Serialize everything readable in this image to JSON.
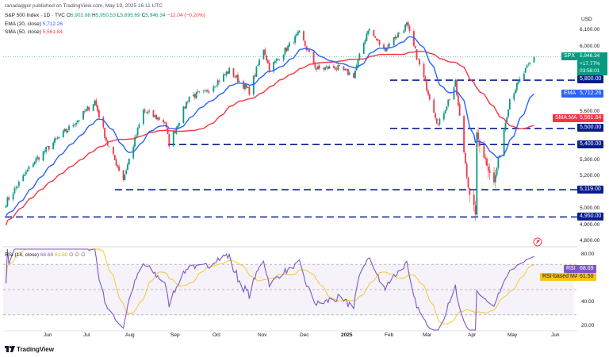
{
  "published": "ranadagger published on TradingView.com, May 19, 2025 16:11 UTC",
  "header": {
    "title": "S&P 500 Index · 1D · TVC",
    "ohlc": [
      {
        "k": "O",
        "v": "5,902.88"
      },
      {
        "k": "H",
        "v": "5,950.53"
      },
      {
        "k": "L",
        "v": "5,895.69"
      },
      {
        "k": "C",
        "v": "5,946.34"
      }
    ],
    "change": "−12.04 (−0.20%)",
    "ema_label": "EMA (20, close)",
    "ema_value": "5,712.26",
    "sma_label": "SMA (50, close)",
    "sma_value": "5,561.84"
  },
  "currency": "USD",
  "price_axis": [
    "6,100.00",
    "6,000.00",
    "5,600.00",
    "5,300.00",
    "5,200.00",
    "5,100.00",
    "5,000.00",
    "4,900.00",
    "4,800.00"
  ],
  "levels": [
    "5,800.00",
    "5,500.00",
    "5,400.00",
    "5,119.00",
    "4,950.00"
  ],
  "tags": {
    "spx": "SPX",
    "spx_value": "5,946.34",
    "spx_change": "+17.77%",
    "spx_time": "03:58:01",
    "ema": "EMA",
    "ema_value": "5,712.26",
    "sma": "SMA:MA",
    "sma_value": "5,561.84"
  },
  "rsi": {
    "label": "RSI (14, close)",
    "value": "68.69",
    "ma_value": "61.50",
    "extra": "∅ ∅ ∅",
    "axis": [
      "80.00",
      "40.00",
      "20.00"
    ],
    "tag_rsi": "RSI",
    "tag_rsi_value": "68.69",
    "tag_ma": "RSI-based MA",
    "tag_ma_value": "61.50"
  },
  "time_axis": [
    "Jun",
    "Jul",
    "Aug",
    "Sep",
    "Oct",
    "Nov",
    "Dec",
    "2025",
    "Feb",
    "Mar",
    "Apr",
    "May",
    "Jun"
  ],
  "logo": "TradingView",
  "colors": {
    "up": "#089981",
    "down": "#f23645",
    "ema": "#2962ff",
    "sma": "#f23645",
    "rsi": "#7e57c2",
    "rsi_ma": "#f5c518",
    "level": "#0a1d8f"
  },
  "chart_data": {
    "type": "candlestick",
    "title": "S&P 500 Index · 1D · TVC",
    "y_unit": "USD",
    "y_range": [
      4780,
      6170
    ],
    "x_range": [
      "2024-05-13",
      "2025-06-06"
    ],
    "horizontal_levels": [
      5800,
      5500,
      5400,
      5119,
      4950
    ],
    "last_price": 5946.34,
    "anchors_close": [
      [
        "2024-05-15",
        5040
      ],
      [
        "2024-06-03",
        5290
      ],
      [
        "2024-06-18",
        5420
      ],
      [
        "2024-07-05",
        5560
      ],
      [
        "2024-07-16",
        5670
      ],
      [
        "2024-07-25",
        5400
      ],
      [
        "2024-08-05",
        5186
      ],
      [
        "2024-08-19",
        5610
      ],
      [
        "2024-09-03",
        5540
      ],
      [
        "2024-09-06",
        5405
      ],
      [
        "2024-09-20",
        5700
      ],
      [
        "2024-10-01",
        5720
      ],
      [
        "2024-10-18",
        5860
      ],
      [
        "2024-11-01",
        5730
      ],
      [
        "2024-11-11",
        6000
      ],
      [
        "2024-11-15",
        5870
      ],
      [
        "2024-12-06",
        6090
      ],
      [
        "2024-12-18",
        5870
      ],
      [
        "2024-12-31",
        5880
      ],
      [
        "2025-01-13",
        5830
      ],
      [
        "2025-01-23",
        6120
      ],
      [
        "2025-02-03",
        5990
      ],
      [
        "2025-02-19",
        6145
      ],
      [
        "2025-03-10",
        5614
      ],
      [
        "2025-03-13",
        5520
      ],
      [
        "2025-03-25",
        5780
      ],
      [
        "2025-04-04",
        5074
      ],
      [
        "2025-04-08",
        4982
      ],
      [
        "2025-04-09",
        5456
      ],
      [
        "2025-04-21",
        5158
      ],
      [
        "2025-05-02",
        5687
      ],
      [
        "2025-05-12",
        5844
      ],
      [
        "2025-05-19",
        5946
      ]
    ],
    "indicators": [
      {
        "name": "EMA (20, close)",
        "last": 5712.26
      },
      {
        "name": "SMA (50, close)",
        "last": 5561.84
      }
    ],
    "rsi": {
      "name": "RSI (14, close)",
      "last": 68.69,
      "ma_last": 61.5,
      "bands": [
        70,
        50,
        30
      ],
      "y_range": [
        18,
        82
      ]
    }
  }
}
